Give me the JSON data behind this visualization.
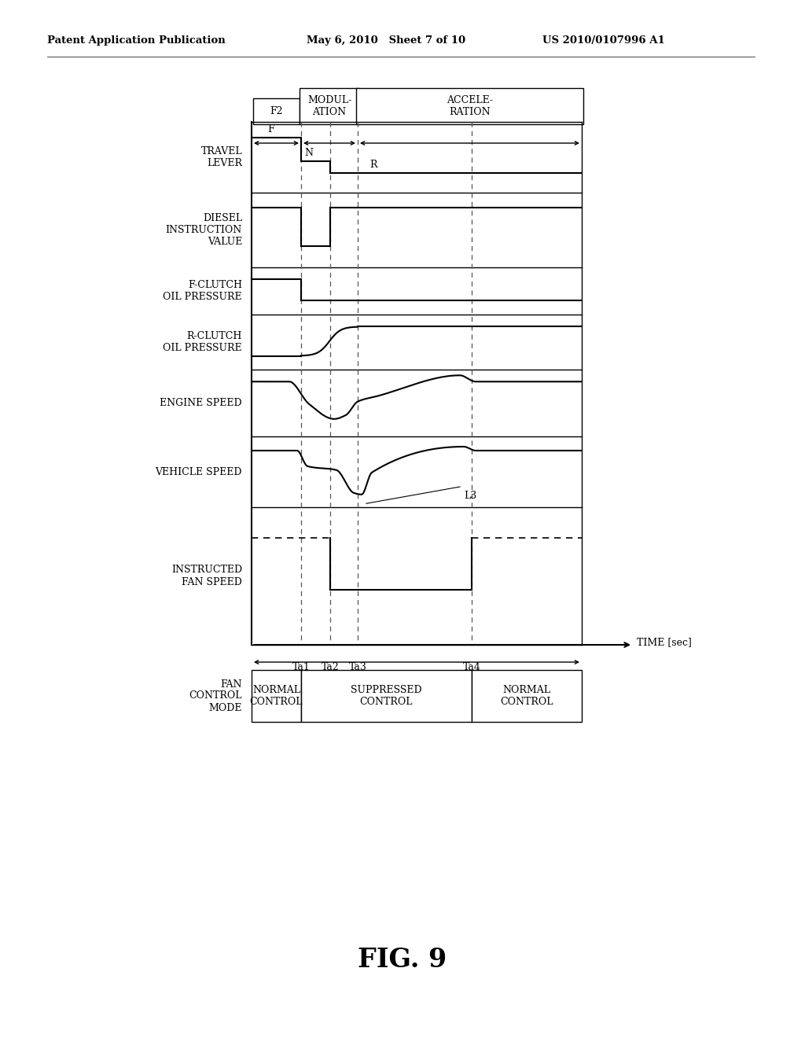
{
  "header_left": "Patent Application Publication",
  "header_mid": "May 6, 2010   Sheet 7 of 10",
  "header_right": "US 2010/0107996 A1",
  "figure_label": "FIG. 9",
  "time_label": "TIME [sec]",
  "x_ticks": [
    "Ta1",
    "Ta2",
    "Ta3",
    "Ta4"
  ],
  "signal_labels": [
    "TRAVEL\nLEVER",
    "DIESEL\nINSTRUCTION\nVALUE",
    "F-CLUTCH\nOIL PRESSURE",
    "R-CLUTCH\nOIL PRESSURE",
    "ENGINE SPEED",
    "VEHICLE SPEED",
    "INSTRUCTED\nFAN SPEED"
  ],
  "fan_control_mode_label": "FAN\nCONTROL\nMODE",
  "background_color": "#ffffff",
  "line_color": "#000000"
}
